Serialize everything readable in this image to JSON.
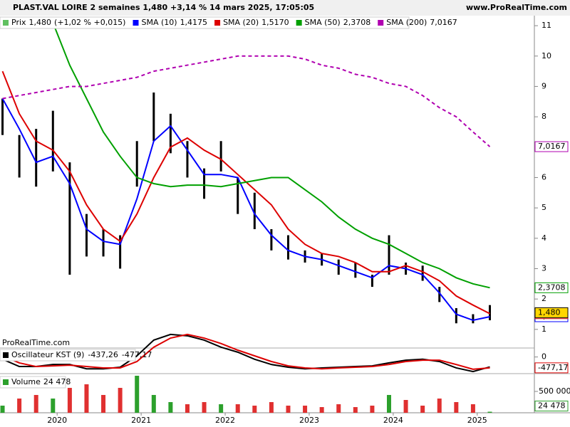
{
  "header": {
    "title": "PLAST.VAL LOIRE 2 semaines 1,480 +3,14 % 14 mars 2025, 17:05:05",
    "site": "www.ProRealTime.com"
  },
  "chart_data": [
    {
      "type": "ohlc",
      "x": [
        2019.35,
        2019.55,
        2019.75,
        2019.95,
        2020.15,
        2020.35,
        2020.55,
        2020.75,
        2020.95,
        2021.15,
        2021.35,
        2021.55,
        2021.75,
        2021.95,
        2022.15,
        2022.35,
        2022.55,
        2022.75,
        2022.95,
        2023.15,
        2023.35,
        2023.55,
        2023.75,
        2023.95,
        2024.15,
        2024.35,
        2024.55,
        2024.75,
        2024.95,
        2025.15
      ],
      "xlim": [
        2019.32,
        2025.68
      ],
      "xticks": [
        2020,
        2021,
        2022,
        2023,
        2024,
        2025
      ],
      "ylim": [
        0.41,
        11.26
      ],
      "yticks": [
        1,
        2,
        3,
        4,
        5,
        6,
        7,
        8,
        9,
        10,
        11
      ],
      "price": {
        "name": "Prix",
        "last_label": "1,480",
        "change": "(+1,02 % +0,015)",
        "color": "#000000",
        "tag_color": "#ffd700",
        "high": [
          8.6,
          7.4,
          7.6,
          8.2,
          6.5,
          4.8,
          4.3,
          4.1,
          7.2,
          8.8,
          8.1,
          7.2,
          6.3,
          7.2,
          6.0,
          5.5,
          4.3,
          4.1,
          3.6,
          3.5,
          3.3,
          3.2,
          2.8,
          4.1,
          3.2,
          3.1,
          2.4,
          1.7,
          1.5,
          1.8
        ],
        "low": [
          7.4,
          6.0,
          5.7,
          6.2,
          2.8,
          3.4,
          3.4,
          3.0,
          5.7,
          7.2,
          6.8,
          6.0,
          5.3,
          6.2,
          4.8,
          4.3,
          3.6,
          3.3,
          3.2,
          3.1,
          2.8,
          2.7,
          2.4,
          2.8,
          2.8,
          2.6,
          1.9,
          1.2,
          1.2,
          1.3
        ]
      },
      "series": [
        {
          "name": "SMA (10)",
          "color": "#0000ff",
          "last_label": "1,4175",
          "dashed": false,
          "values": [
            8.6,
            7.6,
            6.5,
            6.7,
            5.8,
            4.3,
            3.9,
            3.8,
            5.3,
            7.2,
            7.7,
            6.9,
            6.1,
            6.1,
            6.0,
            4.8,
            4.1,
            3.6,
            3.4,
            3.3,
            3.1,
            2.9,
            2.7,
            3.1,
            3.0,
            2.8,
            2.2,
            1.5,
            1.3,
            1.4175
          ]
        },
        {
          "name": "SMA (20)",
          "color": "#dd0000",
          "last_label": "1,5170",
          "dashed": false,
          "values": [
            9.5,
            8.1,
            7.2,
            6.9,
            6.2,
            5.1,
            4.3,
            3.9,
            4.8,
            6.0,
            7.0,
            7.3,
            6.9,
            6.6,
            6.1,
            5.6,
            5.1,
            4.3,
            3.8,
            3.5,
            3.4,
            3.2,
            2.9,
            2.9,
            3.1,
            2.9,
            2.6,
            2.1,
            1.8,
            1.517
          ]
        },
        {
          "name": "SMA (50)",
          "color": "#00a000",
          "last_label": "2,3708",
          "dashed": false,
          "values": [
            null,
            null,
            null,
            11.1,
            9.7,
            8.6,
            7.5,
            6.7,
            6.0,
            5.8,
            5.7,
            5.75,
            5.75,
            5.7,
            5.8,
            5.9,
            6.0,
            6.0,
            5.6,
            5.2,
            4.7,
            4.3,
            4.0,
            3.8,
            3.5,
            3.2,
            3.0,
            2.7,
            2.5,
            2.3708
          ]
        },
        {
          "name": "SMA (200)",
          "color": "#b000b0",
          "last_label": "7,0167",
          "dashed": true,
          "values": [
            8.6,
            8.7,
            8.8,
            8.9,
            9.0,
            9.0,
            9.1,
            9.2,
            9.3,
            9.5,
            9.6,
            9.7,
            9.8,
            9.9,
            10.0,
            10.0,
            10.0,
            10.0,
            9.9,
            9.7,
            9.6,
            9.4,
            9.3,
            9.1,
            9.0,
            8.7,
            8.3,
            8.0,
            7.5,
            7.0167
          ]
        }
      ]
    },
    {
      "type": "line",
      "name": "Oscillateur KST (9)",
      "watermark": "ProRealTime.com",
      "ylim": [
        -700,
        1050
      ],
      "yticks": [
        0
      ],
      "series": [
        {
          "color": "#000000",
          "last_label": "-437,26",
          "values": [
            -100,
            -420,
            -420,
            -330,
            -330,
            -520,
            -520,
            -450,
            50,
            740,
            990,
            930,
            740,
            430,
            210,
            -100,
            -330,
            -450,
            -520,
            -480,
            -450,
            -420,
            -390,
            -260,
            -140,
            -100,
            -200,
            -480,
            -640,
            -437.26
          ]
        },
        {
          "color": "#dd0000",
          "last_label": "-477,17",
          "values": [
            50,
            -260,
            -420,
            -390,
            -360,
            -420,
            -480,
            -480,
            -200,
            430,
            830,
            990,
            830,
            590,
            300,
            50,
            -200,
            -390,
            -480,
            -520,
            -480,
            -450,
            -420,
            -330,
            -200,
            -140,
            -140,
            -330,
            -540,
            -477.17
          ]
        }
      ]
    },
    {
      "type": "bar",
      "name": "Volume",
      "last_label": "24 478",
      "color": "#2ca02c",
      "down_color": "#e03030",
      "ylim": [
        0,
        883333
      ],
      "yticks": [
        {
          "value": 500000,
          "label": "500 000"
        }
      ],
      "values": [
        167000,
        333000,
        417000,
        333000,
        583000,
        667000,
        417000,
        583000,
        867000,
        417000,
        250000,
        200000,
        250000,
        200000,
        200000,
        167000,
        250000,
        167000,
        167000,
        133000,
        200000,
        133000,
        167000,
        417000,
        300000,
        167000,
        333000,
        250000,
        200000,
        24478
      ]
    }
  ]
}
